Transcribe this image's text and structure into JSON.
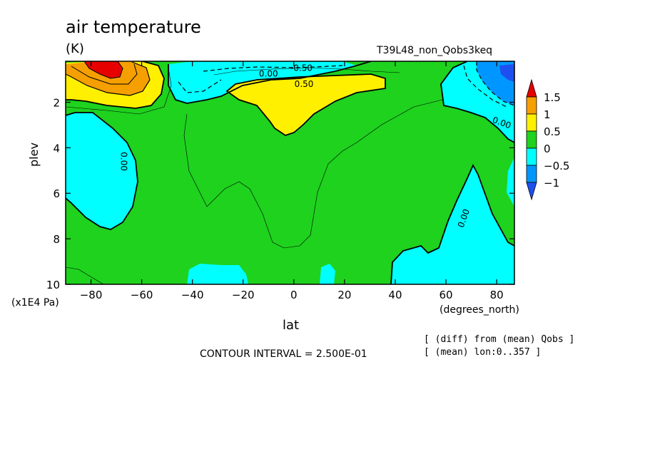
{
  "chart_data": {
    "type": "contour",
    "title": "air temperature",
    "units": "(K)",
    "experiment": "T39L48_non_Qobs3keq",
    "xlabel": "lat",
    "xunits": "(degrees_north)",
    "ylabel": "plev",
    "yunits": "(x1E4 Pa)",
    "xlim": [
      -90,
      87
    ],
    "ylim": [
      10,
      0.2
    ],
    "y_inverted": true,
    "x_ticks": [
      -80,
      -60,
      -40,
      -20,
      0,
      20,
      40,
      60,
      80
    ],
    "y_ticks": [
      2,
      4,
      6,
      8,
      10
    ],
    "contour_interval_text": "CONTOUR INTERVAL = 2.500E-01",
    "notes": [
      "[ (diff) from (mean) Qobs ]",
      "[ (mean) lon:0..357 ]"
    ],
    "contour_labels": [
      {
        "text": "0.00",
        "lat": -10,
        "plev": 0.75
      },
      {
        "text": "-0.50",
        "lat": 3,
        "plev": 0.5
      },
      {
        "text": "0.50",
        "lat": 4,
        "plev": 1.2
      },
      {
        "text": "0.00",
        "lat": 82,
        "plev": 2.9
      },
      {
        "text": "0.00",
        "lat": -67,
        "plev": 4.6
      },
      {
        "text": "0.00",
        "lat": 67,
        "plev": 7.1
      }
    ],
    "colorbar": {
      "levels": [
        "1.5",
        "1",
        "0.5",
        "0",
        "-0.5",
        "-1"
      ],
      "colors": [
        "#e60000",
        "#f5a000",
        "#fff000",
        "#1ed21e",
        "#00ffff",
        "#0096ff",
        "#1e50f0"
      ]
    },
    "regions": [
      {
        "level": "0 to 0.5",
        "color": "#1ed21e",
        "description": "background over most of the domain"
      },
      {
        "level": "0.5 to 1",
        "color": "#fff000",
        "description": "south polar upper levels and tropical upper levels"
      },
      {
        "level": "1 to 1.5",
        "color": "#f5a000",
        "description": "south polar maximum near -75"
      },
      {
        "level": ">1.5",
        "color": "#e60000",
        "description": "core near -72, top level"
      },
      {
        "level": "-0.5 to 0",
        "color": "#00ffff",
        "description": "southern mid-levels, northern upper levels, near-surface pockets"
      },
      {
        "level": "-1 to -0.5",
        "color": "#0096ff",
        "description": "north polar top level"
      },
      {
        "level": "<-1",
        "color": "#1e50f0",
        "description": "north polar top level core"
      }
    ]
  }
}
